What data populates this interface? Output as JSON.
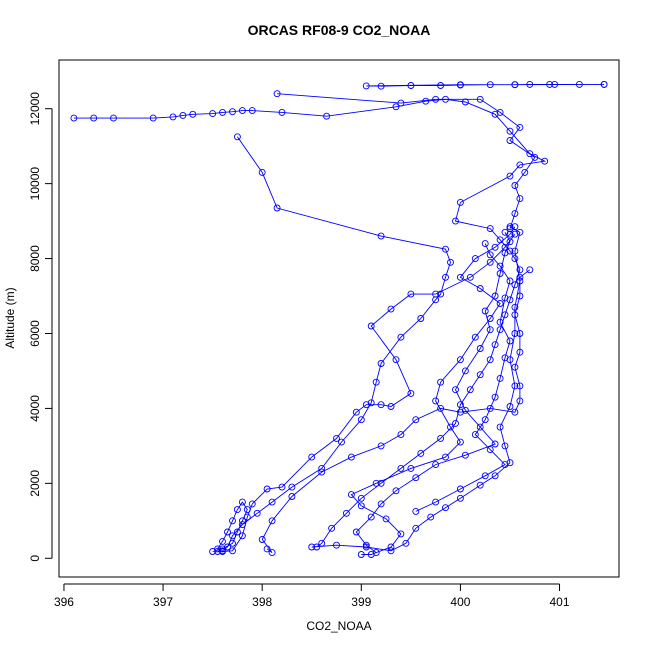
{
  "chart_data": {
    "type": "scatter",
    "title": "ORCAS RF08-9 CO2_NOAA",
    "xlabel": "CO2_NOAA",
    "ylabel": "Altitude (m)",
    "xlim": [
      395.95,
      401.6
    ],
    "ylim": [
      -500,
      13300
    ],
    "xticks": [
      396,
      397,
      398,
      399,
      400,
      401
    ],
    "yticks": [
      0,
      2000,
      4000,
      6000,
      8000,
      10000,
      12000
    ],
    "grid": false,
    "color": "#0000ff",
    "series": [
      {
        "points": [
          [
            401.45,
            12650
          ],
          [
            401.2,
            12650
          ],
          [
            400.95,
            12650
          ],
          [
            400.9,
            12650
          ],
          [
            400.7,
            12650
          ],
          [
            400.55,
            12640
          ],
          [
            400.3,
            12640
          ],
          [
            400.0,
            12630
          ],
          [
            399.8,
            12620
          ],
          [
            399.5,
            12620
          ],
          [
            399.2,
            12600
          ],
          [
            399.05,
            12610
          ],
          [
            400.0,
            12640
          ],
          [
            400.55,
            12640
          ],
          [
            401.45,
            12650
          ]
        ]
      },
      {
        "points": [
          [
            398.15,
            12400
          ],
          [
            399.4,
            12150
          ],
          [
            399.75,
            12250
          ],
          [
            400.2,
            12250
          ],
          [
            400.4,
            11900
          ],
          [
            400.6,
            11500
          ],
          [
            400.5,
            11150
          ],
          [
            400.75,
            10700
          ],
          [
            400.65,
            10300
          ],
          [
            400.55,
            9950
          ],
          [
            400.6,
            9600
          ],
          [
            400.55,
            9200
          ],
          [
            400.5,
            8800
          ]
        ]
      },
      {
        "points": [
          [
            396.1,
            11750
          ],
          [
            396.3,
            11750
          ],
          [
            396.5,
            11750
          ],
          [
            396.9,
            11750
          ],
          [
            397.1,
            11780
          ],
          [
            397.2,
            11820
          ],
          [
            397.3,
            11850
          ],
          [
            397.5,
            11870
          ],
          [
            397.6,
            11900
          ],
          [
            397.7,
            11920
          ],
          [
            397.8,
            11950
          ],
          [
            397.9,
            11950
          ],
          [
            398.2,
            11900
          ],
          [
            398.65,
            11800
          ],
          [
            399.35,
            12050
          ],
          [
            399.65,
            12200
          ],
          [
            399.85,
            12250
          ],
          [
            400.05,
            12180
          ],
          [
            400.35,
            11850
          ],
          [
            400.5,
            11400
          ],
          [
            400.7,
            10800
          ],
          [
            400.85,
            10600
          ],
          [
            400.6,
            10500
          ],
          [
            400.5,
            10200
          ],
          [
            400.0,
            9500
          ],
          [
            399.95,
            9000
          ],
          [
            400.3,
            8800
          ],
          [
            400.4,
            8500
          ],
          [
            400.5,
            8200
          ],
          [
            400.55,
            8000
          ],
          [
            400.6,
            7700
          ],
          [
            400.55,
            7300
          ],
          [
            400.5,
            6900
          ],
          [
            400.45,
            6500
          ],
          [
            400.4,
            6100
          ],
          [
            400.35,
            5700
          ],
          [
            400.3,
            5300
          ],
          [
            400.2,
            4900
          ],
          [
            400.1,
            4500
          ],
          [
            400.0,
            4100
          ],
          [
            399.95,
            3600
          ],
          [
            399.8,
            3200
          ],
          [
            399.6,
            2800
          ],
          [
            399.4,
            2400
          ],
          [
            399.2,
            2000
          ],
          [
            399.0,
            1600
          ],
          [
            398.85,
            1200
          ],
          [
            398.7,
            800
          ],
          [
            398.6,
            400
          ],
          [
            398.55,
            300
          ]
        ]
      },
      {
        "points": [
          [
            397.75,
            11250
          ],
          [
            398.0,
            10300
          ],
          [
            398.15,
            9350
          ],
          [
            399.2,
            8600
          ],
          [
            399.85,
            8250
          ],
          [
            399.9,
            7900
          ],
          [
            399.85,
            7500
          ],
          [
            399.8,
            7050
          ],
          [
            399.75,
            6900
          ],
          [
            399.6,
            6400
          ],
          [
            399.4,
            5900
          ],
          [
            399.2,
            5200
          ],
          [
            399.15,
            4700
          ],
          [
            399.1,
            4150
          ],
          [
            399.0,
            3700
          ],
          [
            398.8,
            3100
          ],
          [
            398.6,
            2400
          ],
          [
            398.3,
            1900
          ],
          [
            398.1,
            1500
          ],
          [
            397.95,
            1200
          ],
          [
            397.8,
            900
          ],
          [
            397.7,
            600
          ],
          [
            397.65,
            300
          ],
          [
            397.6,
            200
          ],
          [
            397.55,
            180
          ]
        ]
      },
      {
        "points": [
          [
            397.5,
            180
          ],
          [
            397.6,
            250
          ],
          [
            397.7,
            400
          ],
          [
            397.75,
            700
          ],
          [
            397.8,
            1000
          ],
          [
            397.85,
            1300
          ],
          [
            397.8,
            1500
          ],
          [
            397.75,
            1300
          ],
          [
            397.7,
            1000
          ],
          [
            397.65,
            700
          ],
          [
            397.6,
            450
          ],
          [
            397.55,
            250
          ],
          [
            397.6,
            180
          ],
          [
            397.7,
            200
          ],
          [
            397.8,
            600
          ],
          [
            397.85,
            1100
          ],
          [
            397.9,
            1450
          ],
          [
            398.05,
            1850
          ],
          [
            398.2,
            1900
          ],
          [
            398.5,
            2700
          ],
          [
            398.75,
            3200
          ],
          [
            398.95,
            3900
          ],
          [
            399.05,
            4100
          ],
          [
            399.2,
            4100
          ],
          [
            399.3,
            4050
          ],
          [
            399.5,
            4400
          ],
          [
            399.35,
            5300
          ],
          [
            399.1,
            6200
          ],
          [
            399.3,
            6650
          ],
          [
            399.5,
            7050
          ],
          [
            399.75,
            7050
          ],
          [
            400.1,
            7500
          ],
          [
            400.3,
            7900
          ],
          [
            400.45,
            8300
          ],
          [
            400.55,
            8650
          ]
        ]
      },
      {
        "points": [
          [
            398.05,
            250
          ],
          [
            398.1,
            150
          ],
          [
            398.0,
            500
          ],
          [
            398.1,
            1000
          ],
          [
            398.3,
            1650
          ],
          [
            398.6,
            2300
          ],
          [
            398.9,
            2700
          ],
          [
            399.2,
            3000
          ],
          [
            399.4,
            3300
          ],
          [
            399.55,
            3700
          ],
          [
            399.8,
            4000
          ],
          [
            400.0,
            3900
          ],
          [
            400.3,
            4000
          ],
          [
            400.55,
            3900
          ],
          [
            400.6,
            4200
          ],
          [
            400.6,
            4600
          ],
          [
            400.55,
            5100
          ],
          [
            400.6,
            5500
          ],
          [
            400.6,
            6000
          ],
          [
            400.55,
            6500
          ],
          [
            400.6,
            7000
          ],
          [
            400.6,
            7500
          ],
          [
            400.7,
            7700
          ]
        ]
      },
      {
        "points": [
          [
            398.5,
            300
          ],
          [
            398.75,
            350
          ],
          [
            399.05,
            300
          ],
          [
            399.3,
            200
          ],
          [
            399.45,
            400
          ],
          [
            399.55,
            800
          ],
          [
            399.7,
            1100
          ],
          [
            399.85,
            1350
          ],
          [
            400.0,
            1600
          ],
          [
            400.2,
            1950
          ],
          [
            400.35,
            2200
          ],
          [
            400.5,
            2550
          ],
          [
            400.45,
            3000
          ],
          [
            400.4,
            3500
          ],
          [
            400.5,
            4050
          ],
          [
            400.55,
            4600
          ],
          [
            400.5,
            5300
          ],
          [
            400.55,
            6000
          ],
          [
            400.55,
            6700
          ],
          [
            400.6,
            7400
          ],
          [
            400.55,
            8200
          ],
          [
            400.6,
            8700
          ],
          [
            400.5,
            8850
          ]
        ]
      },
      {
        "points": [
          [
            399.0,
            100
          ],
          [
            399.1,
            100
          ],
          [
            399.3,
            300
          ],
          [
            399.4,
            650
          ],
          [
            399.25,
            1050
          ],
          [
            399.0,
            1400
          ],
          [
            398.9,
            1700
          ],
          [
            399.15,
            2000
          ],
          [
            399.5,
            2400
          ],
          [
            399.85,
            2700
          ],
          [
            400.0,
            3100
          ],
          [
            399.9,
            3500
          ],
          [
            399.75,
            4200
          ],
          [
            399.8,
            4700
          ],
          [
            400.0,
            5300
          ],
          [
            400.15,
            5900
          ],
          [
            400.3,
            6400
          ],
          [
            400.4,
            6800
          ],
          [
            400.2,
            7200
          ],
          [
            400.0,
            7500
          ],
          [
            400.15,
            8000
          ],
          [
            400.35,
            8300
          ],
          [
            400.5,
            8650
          ],
          [
            400.55,
            8850
          ]
        ]
      },
      {
        "points": [
          [
            399.15,
            150
          ],
          [
            399.05,
            350
          ],
          [
            398.95,
            700
          ],
          [
            399.1,
            1100
          ],
          [
            399.2,
            1450
          ],
          [
            399.35,
            1800
          ],
          [
            399.55,
            2150
          ],
          [
            399.75,
            2500
          ],
          [
            400.05,
            2750
          ],
          [
            400.35,
            3050
          ],
          [
            400.2,
            3500
          ],
          [
            400.05,
            3950
          ],
          [
            399.95,
            4500
          ],
          [
            400.05,
            5000
          ],
          [
            400.2,
            5600
          ],
          [
            400.3,
            6100
          ],
          [
            400.25,
            6600
          ],
          [
            400.35,
            7000
          ],
          [
            400.4,
            7600
          ],
          [
            400.45,
            8150
          ],
          [
            400.5,
            8450
          ],
          [
            400.45,
            8700
          ]
        ]
      },
      {
        "points": [
          [
            399.55,
            1250
          ],
          [
            399.75,
            1500
          ],
          [
            400.0,
            1850
          ],
          [
            400.25,
            2200
          ],
          [
            400.45,
            2500
          ],
          [
            400.3,
            2900
          ],
          [
            400.15,
            3300
          ],
          [
            400.25,
            3700
          ],
          [
            400.35,
            4300
          ],
          [
            400.4,
            4800
          ],
          [
            400.45,
            5350
          ],
          [
            400.5,
            5800
          ],
          [
            400.4,
            6300
          ],
          [
            400.45,
            6950
          ],
          [
            400.5,
            7400
          ],
          [
            400.4,
            7800
          ],
          [
            400.3,
            8100
          ],
          [
            400.25,
            8400
          ]
        ]
      }
    ]
  }
}
